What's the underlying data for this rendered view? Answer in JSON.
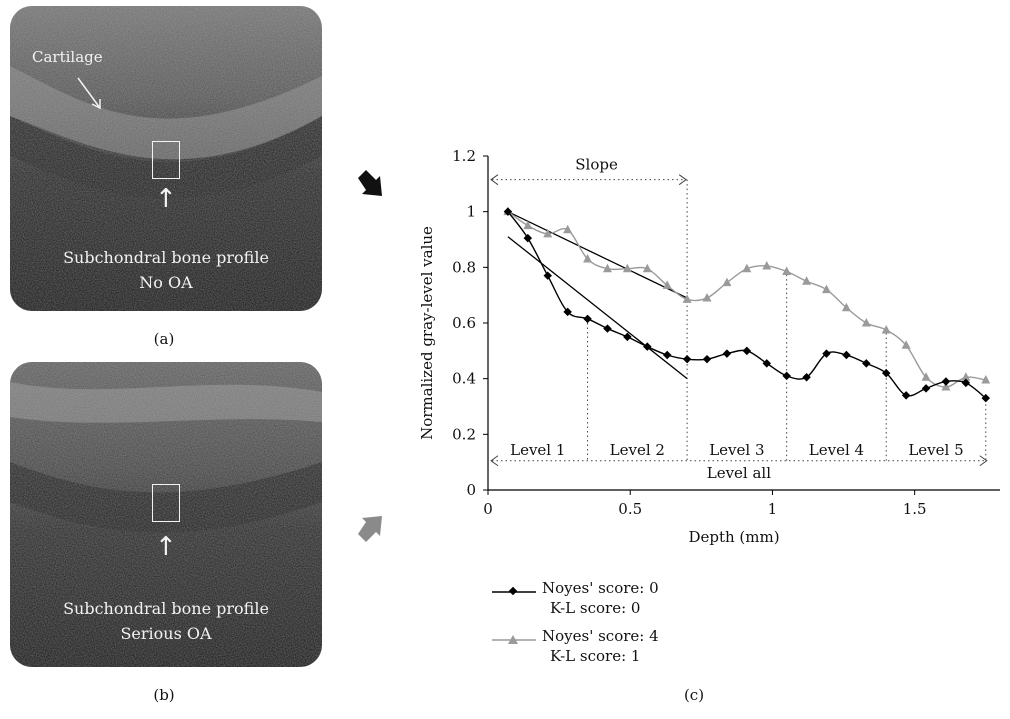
{
  "panels": {
    "a": {
      "caption": "(a)",
      "cartilage_label": "Cartilage",
      "line1": "Subchondral bone profile",
      "line2": "No OA"
    },
    "b": {
      "caption": "(b)",
      "line1": "Subchondral bone profile",
      "line2": "Serious OA"
    },
    "c": {
      "caption": "(c)"
    }
  },
  "colors": {
    "no_oa_series": "#000000",
    "serious_oa_series": "#9a9a9a",
    "arrow_a": "#111111",
    "arrow_b": "#8a8a8a"
  },
  "icons": {
    "arrow_a": "arrow-down-right-icon",
    "arrow_b": "arrow-up-right-icon"
  },
  "chart_data": {
    "type": "line",
    "xlabel": "Depth (mm)",
    "ylabel": "Normalized gray-level value",
    "xlim": [
      0,
      1.8
    ],
    "ylim": [
      0,
      1.2
    ],
    "xticks": [
      "0",
      "0.5",
      "1",
      "1.5"
    ],
    "yticks": [
      "0",
      "0.2",
      "0.4",
      "0.6",
      "0.8",
      "1",
      "1.2"
    ],
    "grid": false,
    "legend_position": "below",
    "series": [
      {
        "name": "Noyes' score: 0",
        "name_line2": "K-L score: 0",
        "marker": "diamond",
        "x": [
          0.07,
          0.14,
          0.21,
          0.28,
          0.35,
          0.42,
          0.49,
          0.56,
          0.63,
          0.7,
          0.77,
          0.84,
          0.91,
          0.98,
          1.05,
          1.12,
          1.19,
          1.26,
          1.33,
          1.4,
          1.47,
          1.54,
          1.61,
          1.68,
          1.75
        ],
        "y": [
          1.0,
          0.905,
          0.77,
          0.64,
          0.615,
          0.58,
          0.55,
          0.515,
          0.485,
          0.47,
          0.47,
          0.49,
          0.5,
          0.455,
          0.41,
          0.405,
          0.49,
          0.485,
          0.455,
          0.42,
          0.34,
          0.365,
          0.39,
          0.385,
          0.33
        ]
      },
      {
        "name": "Noyes' score: 4",
        "name_line2": "K-L score: 1",
        "marker": "triangle",
        "x": [
          0.07,
          0.14,
          0.21,
          0.28,
          0.35,
          0.42,
          0.49,
          0.56,
          0.63,
          0.7,
          0.77,
          0.84,
          0.91,
          0.98,
          1.05,
          1.12,
          1.19,
          1.26,
          1.33,
          1.4,
          1.47,
          1.54,
          1.61,
          1.68,
          1.75
        ],
        "y": [
          1.0,
          0.95,
          0.92,
          0.935,
          0.83,
          0.795,
          0.795,
          0.795,
          0.735,
          0.685,
          0.69,
          0.745,
          0.795,
          0.805,
          0.785,
          0.75,
          0.72,
          0.655,
          0.6,
          0.575,
          0.52,
          0.405,
          0.37,
          0.405,
          0.395
        ]
      }
    ],
    "trend_lines": [
      {
        "x": [
          0.07,
          0.7
        ],
        "y": [
          1.0,
          0.69
        ]
      },
      {
        "x": [
          0.07,
          0.7
        ],
        "y": [
          0.91,
          0.4
        ]
      }
    ],
    "annotations": {
      "slope": {
        "label": "Slope",
        "x_range": [
          0.0,
          0.7
        ],
        "y": 1.115
      },
      "levels": [
        {
          "label": "Level 1",
          "x_range": [
            0.0,
            0.35
          ]
        },
        {
          "label": "Level 2",
          "x_range": [
            0.35,
            0.7
          ]
        },
        {
          "label": "Level 3",
          "x_range": [
            0.7,
            1.05
          ]
        },
        {
          "label": "Level 4",
          "x_range": [
            1.05,
            1.4
          ]
        },
        {
          "label": "Level 5",
          "x_range": [
            1.4,
            1.75
          ]
        }
      ],
      "level_all": {
        "label": "Level all",
        "x_range": [
          0.0,
          1.75
        ],
        "y": 0.105
      }
    }
  }
}
